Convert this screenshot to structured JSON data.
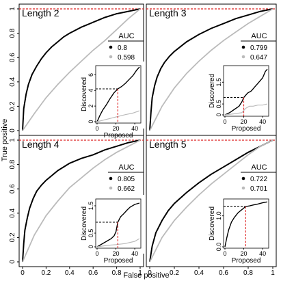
{
  "figure": {
    "xlabel": "False positive",
    "ylabel": "True positive",
    "main_ticks": [
      "0",
      "0.2",
      "0.4",
      "0.6",
      "0.8",
      "1"
    ],
    "legend_title": "AUC",
    "inset_xlabel": "Proposed",
    "inset_ylabel": "Discovered",
    "colors": {
      "model": "#000000",
      "baseline": "#bbbbbb",
      "reference": "#dd2222"
    }
  },
  "chart_data": [
    {
      "type": "line",
      "title": "Length 2",
      "xlim": [
        0,
        1
      ],
      "ylim": [
        0,
        1
      ],
      "series": [
        {
          "name": "0.8",
          "color": "#000000",
          "x": [
            0,
            0.01,
            0.03,
            0.05,
            0.08,
            0.12,
            0.16,
            0.2,
            0.25,
            0.3,
            0.35,
            0.4,
            0.5,
            0.6,
            0.7,
            0.8,
            0.9,
            1
          ],
          "y": [
            0,
            0.18,
            0.3,
            0.38,
            0.46,
            0.53,
            0.59,
            0.64,
            0.69,
            0.73,
            0.77,
            0.8,
            0.85,
            0.89,
            0.93,
            0.96,
            0.98,
            1
          ]
        },
        {
          "name": "0.598",
          "color": "#bbbbbb",
          "x": [
            0,
            0.1,
            0.2,
            0.3,
            0.4,
            0.5,
            0.6,
            0.7,
            0.8,
            0.9,
            1
          ],
          "y": [
            0,
            0.14,
            0.27,
            0.38,
            0.48,
            0.57,
            0.66,
            0.74,
            0.83,
            0.92,
            1
          ]
        }
      ],
      "inset": {
        "xlim": [
          0,
          45
        ],
        "ylim": [
          0,
          7
        ],
        "yticks": [
          "0",
          "2",
          "4",
          "6"
        ],
        "xticks": [
          "0",
          "20",
          "40"
        ],
        "marker": {
          "x": 22,
          "y": 4.2
        },
        "series": [
          {
            "color": "#000000",
            "x": [
              0,
              3,
              6,
              10,
              14,
              18,
              22,
              26,
              30,
              34,
              38,
              42,
              45
            ],
            "y": [
              0,
              0.8,
              1.5,
              2.2,
              3.0,
              3.7,
              4.2,
              4.5,
              4.9,
              5.4,
              5.9,
              6.6,
              7.0
            ]
          },
          {
            "color": "#bbbbbb",
            "x": [
              0,
              10,
              20,
              30,
              38,
              45
            ],
            "y": [
              0,
              0.3,
              0.6,
              0.9,
              1.1,
              1.4
            ]
          }
        ]
      }
    },
    {
      "type": "line",
      "title": "Length 3",
      "xlim": [
        0,
        1
      ],
      "ylim": [
        0,
        1
      ],
      "series": [
        {
          "name": "0.799",
          "color": "#000000",
          "x": [
            0,
            0.01,
            0.02,
            0.04,
            0.06,
            0.09,
            0.12,
            0.16,
            0.2,
            0.25,
            0.3,
            0.4,
            0.5,
            0.6,
            0.7,
            0.8,
            0.9,
            1
          ],
          "y": [
            0,
            0.15,
            0.27,
            0.37,
            0.44,
            0.51,
            0.56,
            0.61,
            0.65,
            0.69,
            0.73,
            0.79,
            0.84,
            0.88,
            0.92,
            0.95,
            0.98,
            1
          ]
        },
        {
          "name": "0.647",
          "color": "#bbbbbb",
          "x": [
            0,
            0.05,
            0.1,
            0.2,
            0.3,
            0.4,
            0.5,
            0.6,
            0.7,
            0.8,
            0.9,
            1
          ],
          "y": [
            0,
            0.1,
            0.2,
            0.35,
            0.47,
            0.57,
            0.66,
            0.74,
            0.81,
            0.88,
            0.94,
            1
          ]
        }
      ],
      "inset": {
        "xlim": [
          0,
          45
        ],
        "ylim": [
          0,
          2.2
        ],
        "yticks": [
          "0",
          "0.5",
          "1.5"
        ],
        "xticks": [
          "0",
          "20",
          "40"
        ],
        "marker": {
          "x": 20,
          "y": 0.8
        },
        "series": [
          {
            "color": "#000000",
            "x": [
              0,
              5,
              10,
              15,
              18,
              20,
              24,
              28,
              32,
              36,
              40,
              43,
              45
            ],
            "y": [
              0,
              0.1,
              0.25,
              0.4,
              0.6,
              0.8,
              1.0,
              1.1,
              1.3,
              1.5,
              1.7,
              2.0,
              2.1
            ]
          },
          {
            "color": "#bbbbbb",
            "x": [
              0,
              10,
              18,
              22,
              26,
              30,
              35,
              40,
              45
            ],
            "y": [
              0,
              0.05,
              0.1,
              0.3,
              0.4,
              0.4,
              0.45,
              0.45,
              0.5
            ]
          }
        ]
      }
    },
    {
      "type": "line",
      "title": "Length 4",
      "xlim": [
        0,
        1
      ],
      "ylim": [
        0,
        1
      ],
      "series": [
        {
          "name": "0.805",
          "color": "#000000",
          "x": [
            0,
            0.01,
            0.02,
            0.04,
            0.06,
            0.09,
            0.12,
            0.16,
            0.2,
            0.25,
            0.3,
            0.4,
            0.5,
            0.6,
            0.7,
            0.8,
            0.9,
            1
          ],
          "y": [
            0,
            0.15,
            0.26,
            0.36,
            0.44,
            0.52,
            0.58,
            0.63,
            0.67,
            0.71,
            0.75,
            0.81,
            0.85,
            0.88,
            0.92,
            0.95,
            0.98,
            1
          ]
        },
        {
          "name": "0.662",
          "color": "#bbbbbb",
          "x": [
            0,
            0.05,
            0.1,
            0.2,
            0.3,
            0.4,
            0.5,
            0.6,
            0.7,
            0.8,
            0.9,
            1
          ],
          "y": [
            0,
            0.11,
            0.22,
            0.38,
            0.5,
            0.61,
            0.69,
            0.77,
            0.84,
            0.9,
            0.95,
            1
          ]
        }
      ],
      "inset": {
        "xlim": [
          0,
          45
        ],
        "ylim": [
          0,
          1.7
        ],
        "yticks": [
          "0",
          "0.5",
          "1.5"
        ],
        "xticks": [
          "0",
          "20",
          "40"
        ],
        "marker": {
          "x": 22,
          "y": 0.9
        },
        "series": [
          {
            "color": "#000000",
            "x": [
              0,
              5,
              10,
              15,
              18,
              20,
              22,
              25,
              28,
              32,
              35,
              40,
              45
            ],
            "y": [
              0,
              0.1,
              0.2,
              0.3,
              0.4,
              0.55,
              0.9,
              1.1,
              1.2,
              1.35,
              1.45,
              1.55,
              1.6
            ]
          },
          {
            "color": "#bbbbbb",
            "x": [
              0,
              10,
              20,
              30,
              40,
              45
            ],
            "y": [
              0,
              0.05,
              0.08,
              0.12,
              0.2,
              0.3
            ]
          }
        ]
      }
    },
    {
      "type": "line",
      "title": "Length 5",
      "xlim": [
        0,
        1
      ],
      "ylim": [
        0,
        1
      ],
      "series": [
        {
          "name": "0.722",
          "color": "#000000",
          "x": [
            0,
            0.02,
            0.05,
            0.1,
            0.15,
            0.2,
            0.3,
            0.4,
            0.5,
            0.6,
            0.7,
            0.8,
            0.9,
            1
          ],
          "y": [
            0,
            0.13,
            0.24,
            0.34,
            0.42,
            0.48,
            0.57,
            0.65,
            0.72,
            0.78,
            0.84,
            0.9,
            0.95,
            1
          ]
        },
        {
          "name": "0.701",
          "color": "#bbbbbb",
          "x": [
            0,
            0.05,
            0.1,
            0.2,
            0.3,
            0.4,
            0.5,
            0.6,
            0.7,
            0.8,
            0.9,
            1
          ],
          "y": [
            0,
            0.1,
            0.2,
            0.34,
            0.45,
            0.55,
            0.64,
            0.72,
            0.8,
            0.88,
            0.95,
            1
          ]
        }
      ],
      "inset": {
        "xlim": [
          0,
          45
        ],
        "ylim": [
          0,
          1.5
        ],
        "yticks": [
          "0.0",
          "1.0"
        ],
        "xticks": [
          "0",
          "20",
          "40"
        ],
        "marker": {
          "x": 22,
          "y": 1.3
        },
        "series": [
          {
            "color": "#000000",
            "x": [
              0,
              2,
              4,
              7,
              10,
              14,
              18,
              22,
              26,
              30,
              35,
              40,
              45
            ],
            "y": [
              0,
              0.3,
              0.55,
              0.8,
              0.95,
              1.1,
              1.2,
              1.3,
              1.32,
              1.35,
              1.38,
              1.42,
              1.45
            ]
          }
        ]
      }
    }
  ]
}
